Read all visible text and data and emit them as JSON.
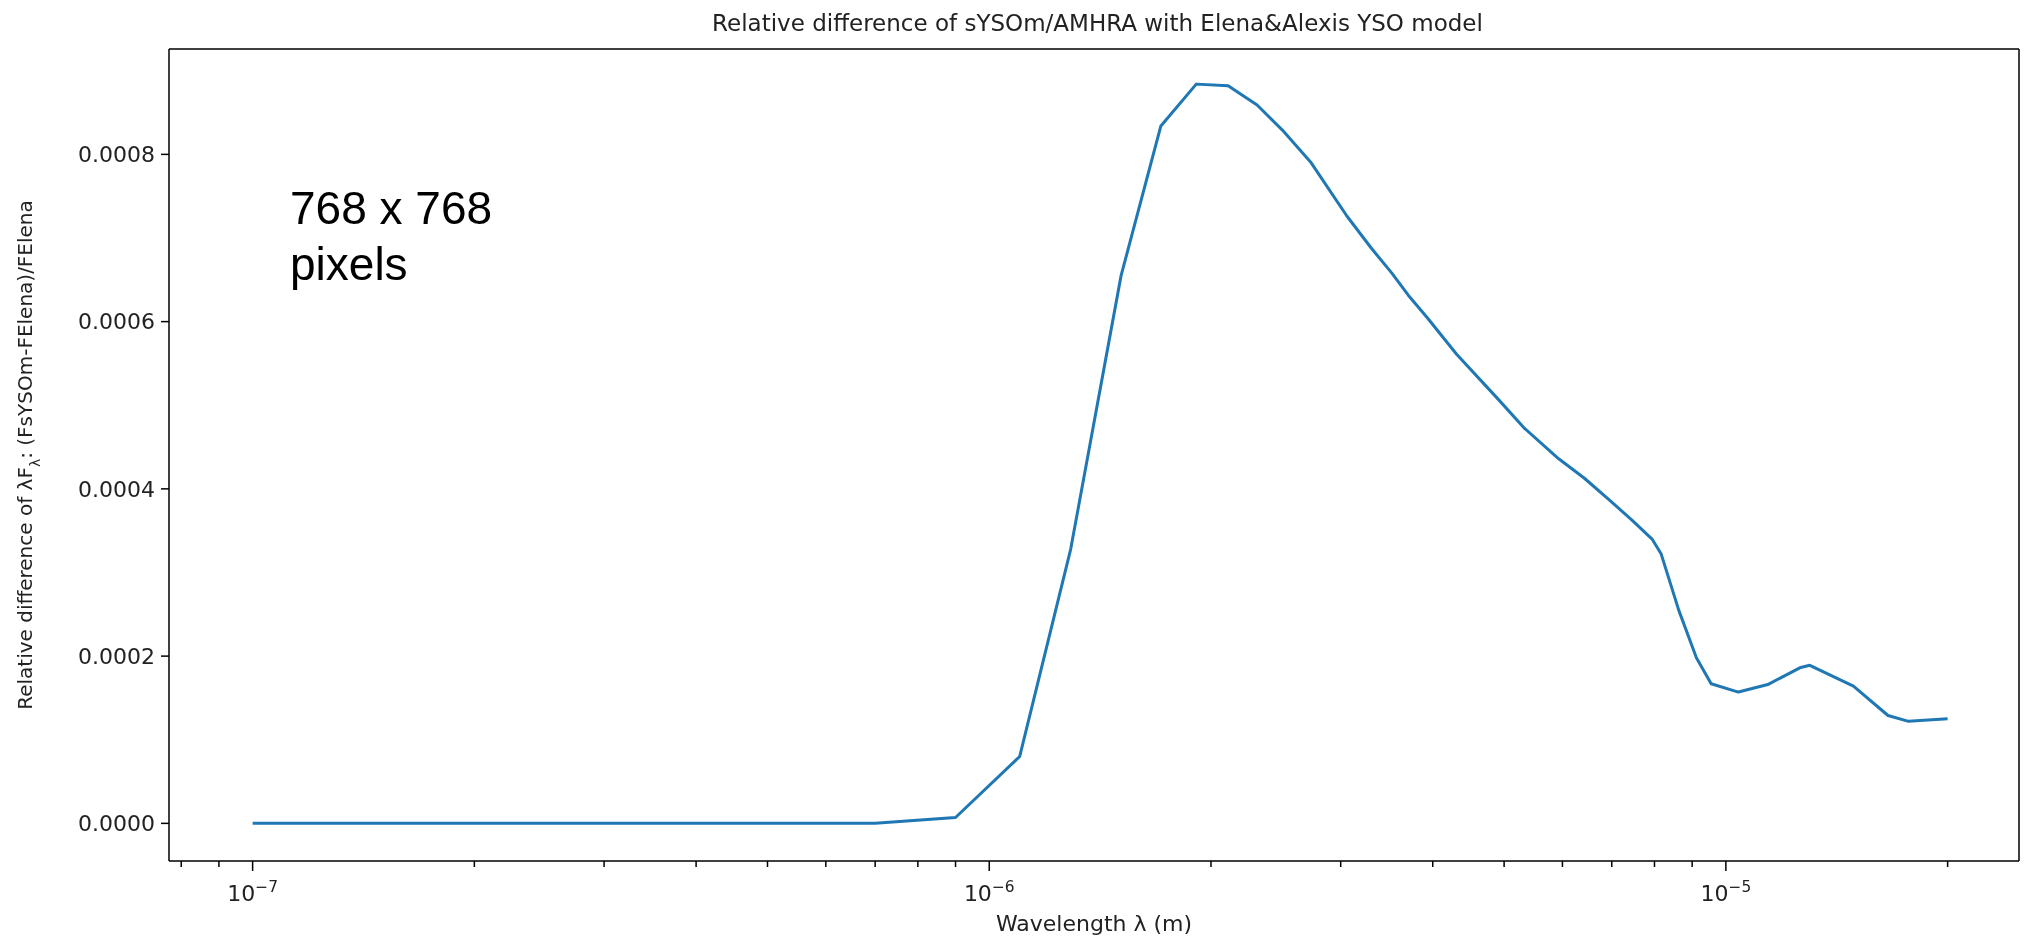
{
  "chart_data": {
    "type": "line",
    "title": "Relative difference of sYSOm/AMHRA with Elena&Alexis YSO model",
    "xlabel": "Wavelength λ (m)",
    "ylabel": "Relative difference of λF$_{λ}$: (FsYSOm-FElena)/FElena",
    "annotations": [
      "768 x 768 pixels"
    ],
    "log": "x",
    "x": [
      1e-07,
      2e-07,
      3e-07,
      4e-07,
      5e-07,
      6e-07,
      7e-07,
      9e-07,
      1.1e-06,
      1.29e-06,
      1.51e-06,
      1.71e-06,
      1.91e-06,
      2.11e-06,
      2.31e-06,
      2.5e-06,
      2.73e-06,
      3.06e-06,
      3.3e-06,
      3.52e-06,
      3.71e-06,
      3.93e-06,
      4.31e-06,
      4.91e-06,
      5.32e-06,
      5.93e-06,
      6.42e-06,
      6.92e-06,
      7.45e-06,
      7.94e-06,
      8.17e-06,
      8.63e-06,
      9.12e-06,
      9.55e-06,
      1.04e-05,
      1.14e-05,
      1.26e-05,
      1.3e-05,
      1.49e-05,
      1.66e-05,
      1.77e-05,
      2e-05
    ],
    "series": [
      {
        "color": "#1f77b4",
        "values": [
          0,
          0,
          0,
          0,
          0,
          0,
          0,
          7e-06,
          8e-05,
          0.000328,
          0.000655,
          0.000834,
          0.000884,
          0.000882,
          0.000859,
          0.000829,
          0.000791,
          0.000726,
          0.000688,
          0.000658,
          0.000631,
          0.000605,
          0.000561,
          0.000507,
          0.000473,
          0.000436,
          0.000413,
          0.000388,
          0.000363,
          0.00034,
          0.000322,
          0.000255,
          0.000198,
          0.000167,
          0.000157,
          0.000166,
          0.000186,
          0.000189,
          0.000164,
          0.000129,
          0.000122,
          0.000125
        ]
      }
    ],
    "xlim": [
      7.7e-08,
      2.5e-05
    ],
    "ylim": [
      -4.5e-05,
      0.000926
    ],
    "xticks": [
      {
        "value": 8e-08,
        "label": null
      },
      {
        "value": 9e-08,
        "label": null
      },
      {
        "value": 1e-07,
        "label": "10$^{−7}$"
      },
      {
        "value": 2e-07,
        "label": null
      },
      {
        "value": 3e-07,
        "label": null
      },
      {
        "value": 4e-07,
        "label": null
      },
      {
        "value": 5e-07,
        "label": null
      },
      {
        "value": 6e-07,
        "label": null
      },
      {
        "value": 7e-07,
        "label": null
      },
      {
        "value": 8e-07,
        "label": null
      },
      {
        "value": 9e-07,
        "label": null
      },
      {
        "value": 1e-06,
        "label": "10$^{−6}$"
      },
      {
        "value": 2e-06,
        "label": null
      },
      {
        "value": 3e-06,
        "label": null
      },
      {
        "value": 4e-06,
        "label": null
      },
      {
        "value": 5e-06,
        "label": null
      },
      {
        "value": 6e-06,
        "label": null
      },
      {
        "value": 7e-06,
        "label": null
      },
      {
        "value": 8e-06,
        "label": null
      },
      {
        "value": 9e-06,
        "label": null
      },
      {
        "value": 1e-05,
        "label": "10$^{−5}$"
      },
      {
        "value": 2e-05,
        "label": null
      }
    ],
    "yticks": [
      {
        "value": 0,
        "label": "0.0000"
      },
      {
        "value": 0.0002,
        "label": "0.0002"
      },
      {
        "value": 0.0004,
        "label": "0.0004"
      },
      {
        "value": 0.0006,
        "label": "0.0006"
      },
      {
        "value": 0.0008,
        "label": "0.0008"
      }
    ]
  }
}
